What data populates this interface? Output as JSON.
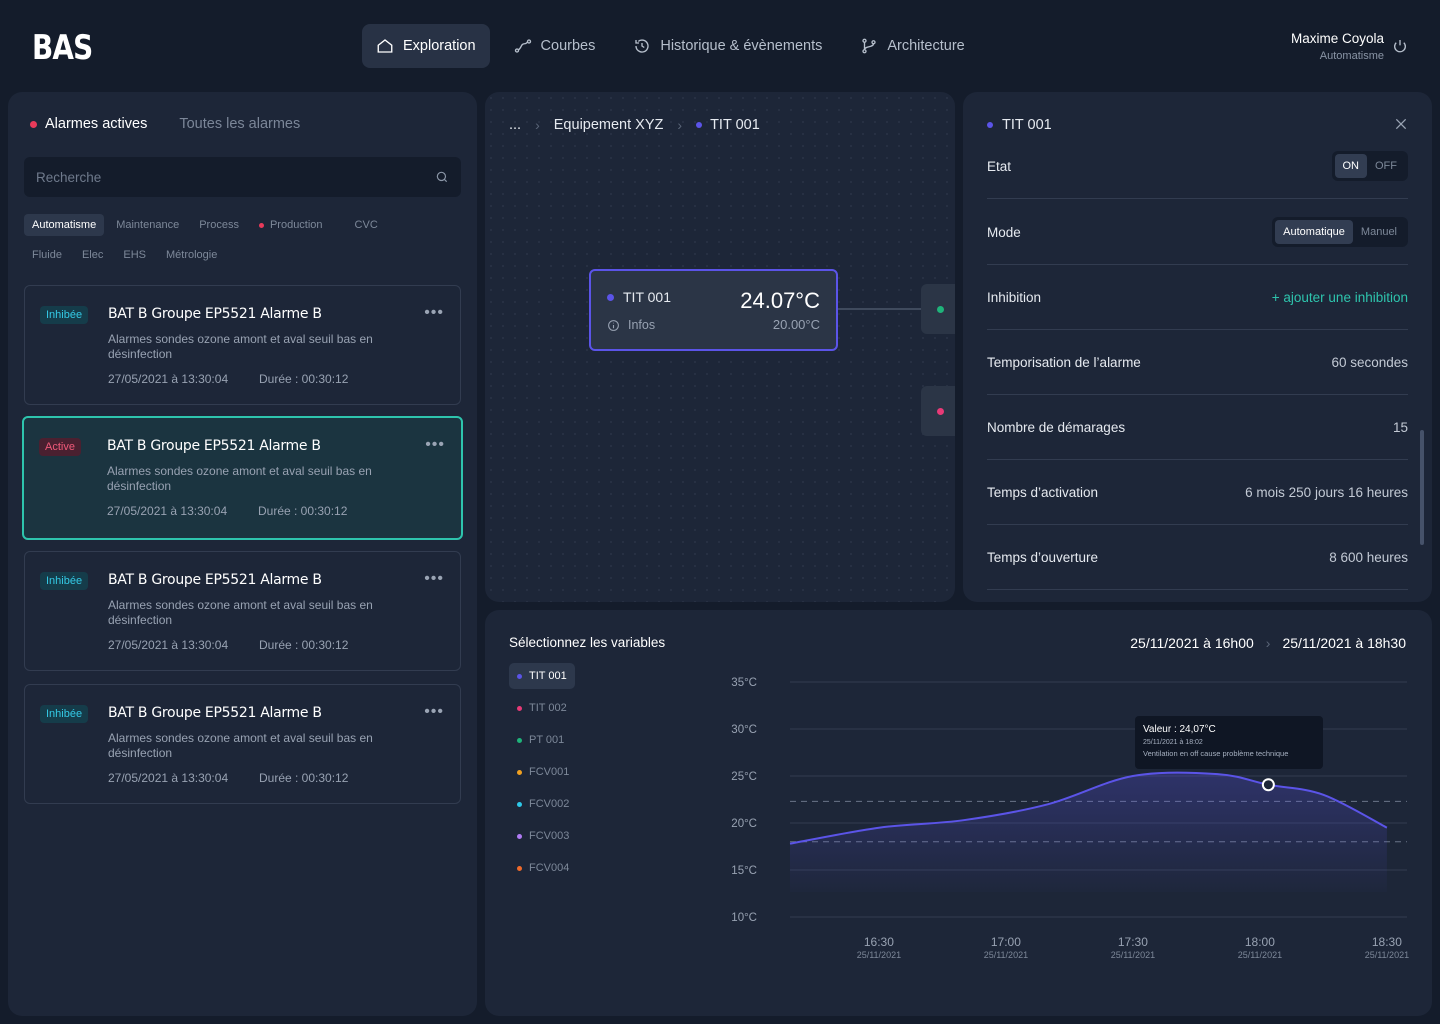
{
  "header": {
    "logo": "BAS",
    "nav": [
      {
        "label": "Exploration",
        "icon": "home-icon",
        "active": true
      },
      {
        "label": "Courbes",
        "icon": "curve-icon",
        "active": false
      },
      {
        "label": "Historique & évènements",
        "icon": "history-icon",
        "active": false
      },
      {
        "label": "Architecture",
        "icon": "branch-icon",
        "active": false
      }
    ],
    "user": {
      "name": "Maxime Coyola",
      "role": "Automatisme"
    }
  },
  "alarms": {
    "tabs": [
      {
        "label": "Alarmes actives",
        "active": true
      },
      {
        "label": "Toutes les alarmes",
        "active": false
      }
    ],
    "search_placeholder": "Recherche",
    "filters": [
      {
        "label": "Automatisme",
        "active": true,
        "dot": false
      },
      {
        "label": "Maintenance",
        "active": false,
        "dot": false
      },
      {
        "label": "Process",
        "active": false,
        "dot": false
      },
      {
        "label": "Production",
        "active": false,
        "dot": true
      },
      {
        "label": "CVC",
        "active": false,
        "dot": false
      },
      {
        "label": "Fluide",
        "active": false,
        "dot": false
      },
      {
        "label": "Elec",
        "active": false,
        "dot": false
      },
      {
        "label": "EHS",
        "active": false,
        "dot": false
      },
      {
        "label": "Métrologie",
        "active": false,
        "dot": false
      }
    ],
    "items": [
      {
        "status": "Inhibée",
        "title": "BAT B Groupe EP5521 Alarme B",
        "desc": "Alarmes sondes ozone amont et aval seuil bas en désinfection",
        "date": "27/05/2021 à 13:30:04",
        "duration": "Durée : 00:30:12",
        "selected": false
      },
      {
        "status": "Active",
        "title": "BAT B Groupe EP5521 Alarme B",
        "desc": "Alarmes sondes ozone amont et aval seuil bas en désinfection",
        "date": "27/05/2021 à 13:30:04",
        "duration": "Durée : 00:30:12",
        "selected": true
      },
      {
        "status": "Inhibée",
        "title": "BAT B Groupe EP5521 Alarme B",
        "desc": "Alarmes sondes ozone amont et aval seuil bas en désinfection",
        "date": "27/05/2021 à 13:30:04",
        "duration": "Durée : 00:30:12",
        "selected": false
      },
      {
        "status": "Inhibée",
        "title": "BAT B Groupe EP5521 Alarme B",
        "desc": "Alarmes sondes ozone amont et aval seuil bas en désinfection",
        "date": "27/05/2021 à 13:30:04",
        "duration": "Durée : 00:30:12",
        "selected": false
      }
    ]
  },
  "explorer": {
    "breadcrumb": [
      "...",
      "Equipement XYZ",
      "TIT 001"
    ],
    "node": {
      "name": "TIT 001",
      "info": "Infos",
      "value": "24.07°C",
      "setpoint": "20.00°C"
    }
  },
  "detail": {
    "title": "TIT 001",
    "etat": {
      "label": "Etat",
      "options": [
        "ON",
        "OFF"
      ],
      "selected": "ON"
    },
    "mode": {
      "label": "Mode",
      "options": [
        "Automatique",
        "Manuel"
      ],
      "selected": "Automatique"
    },
    "inhibition": {
      "label": "Inhibition",
      "action": "+ ajouter une inhibition"
    },
    "rows": [
      {
        "label": "Temporisation de l’alarme",
        "value": "60 secondes"
      },
      {
        "label": "Nombre de démarages",
        "value": "15"
      },
      {
        "label": "Temps d’activation",
        "value": "6 mois 250 jours 16 heures"
      },
      {
        "label": "Temps d’ouverture",
        "value": "8 600 heures"
      }
    ]
  },
  "curves": {
    "title": "Sélectionnez les variables",
    "range_start": "25/11/2021 à 16h00",
    "range_end": "25/11/2021 à 18h30",
    "variables": [
      {
        "name": "TIT 001",
        "color": "#5b54e8",
        "active": true
      },
      {
        "name": "TIT 002",
        "color": "#e83a77",
        "active": false
      },
      {
        "name": "PT 001",
        "color": "#1fb37a",
        "active": false
      },
      {
        "name": "FCV001",
        "color": "#f0a020",
        "active": false
      },
      {
        "name": "FCV002",
        "color": "#2ec8e8",
        "active": false
      },
      {
        "name": "FCV003",
        "color": "#b07bf5",
        "active": false
      },
      {
        "name": "FCV004",
        "color": "#f06a2a",
        "active": false
      }
    ],
    "tooltip": {
      "value": "Valeur : 24,07°C",
      "date": "25/11/2021 à 18:02",
      "note": "Ventilation en off cause problème technique"
    }
  },
  "chart_data": {
    "type": "area",
    "x": [
      "16:09",
      "16:30",
      "16:50",
      "17:10",
      "17:30",
      "17:50",
      "18:02",
      "18:15",
      "18:30"
    ],
    "y": [
      17.8,
      19.5,
      20.3,
      22.0,
      25.0,
      25.2,
      24.07,
      23.0,
      19.5
    ],
    "series": [
      {
        "name": "TIT 001",
        "color": "#5b54e8"
      }
    ],
    "xticks": [
      {
        "time": "16:30",
        "date": "25/11/2021"
      },
      {
        "time": "17:00",
        "date": "25/11/2021"
      },
      {
        "time": "17:30",
        "date": "25/11/2021"
      },
      {
        "time": "18:00",
        "date": "25/11/2021"
      },
      {
        "time": "18:30",
        "date": "25/11/2021"
      }
    ],
    "yticks": [
      "10°C",
      "15°C",
      "20°C",
      "25°C",
      "30°C",
      "35°C"
    ],
    "ylim": [
      10,
      35
    ],
    "thresholds": [
      18,
      22.3
    ],
    "highlight": {
      "x": "18:02",
      "y": 24.07
    }
  }
}
